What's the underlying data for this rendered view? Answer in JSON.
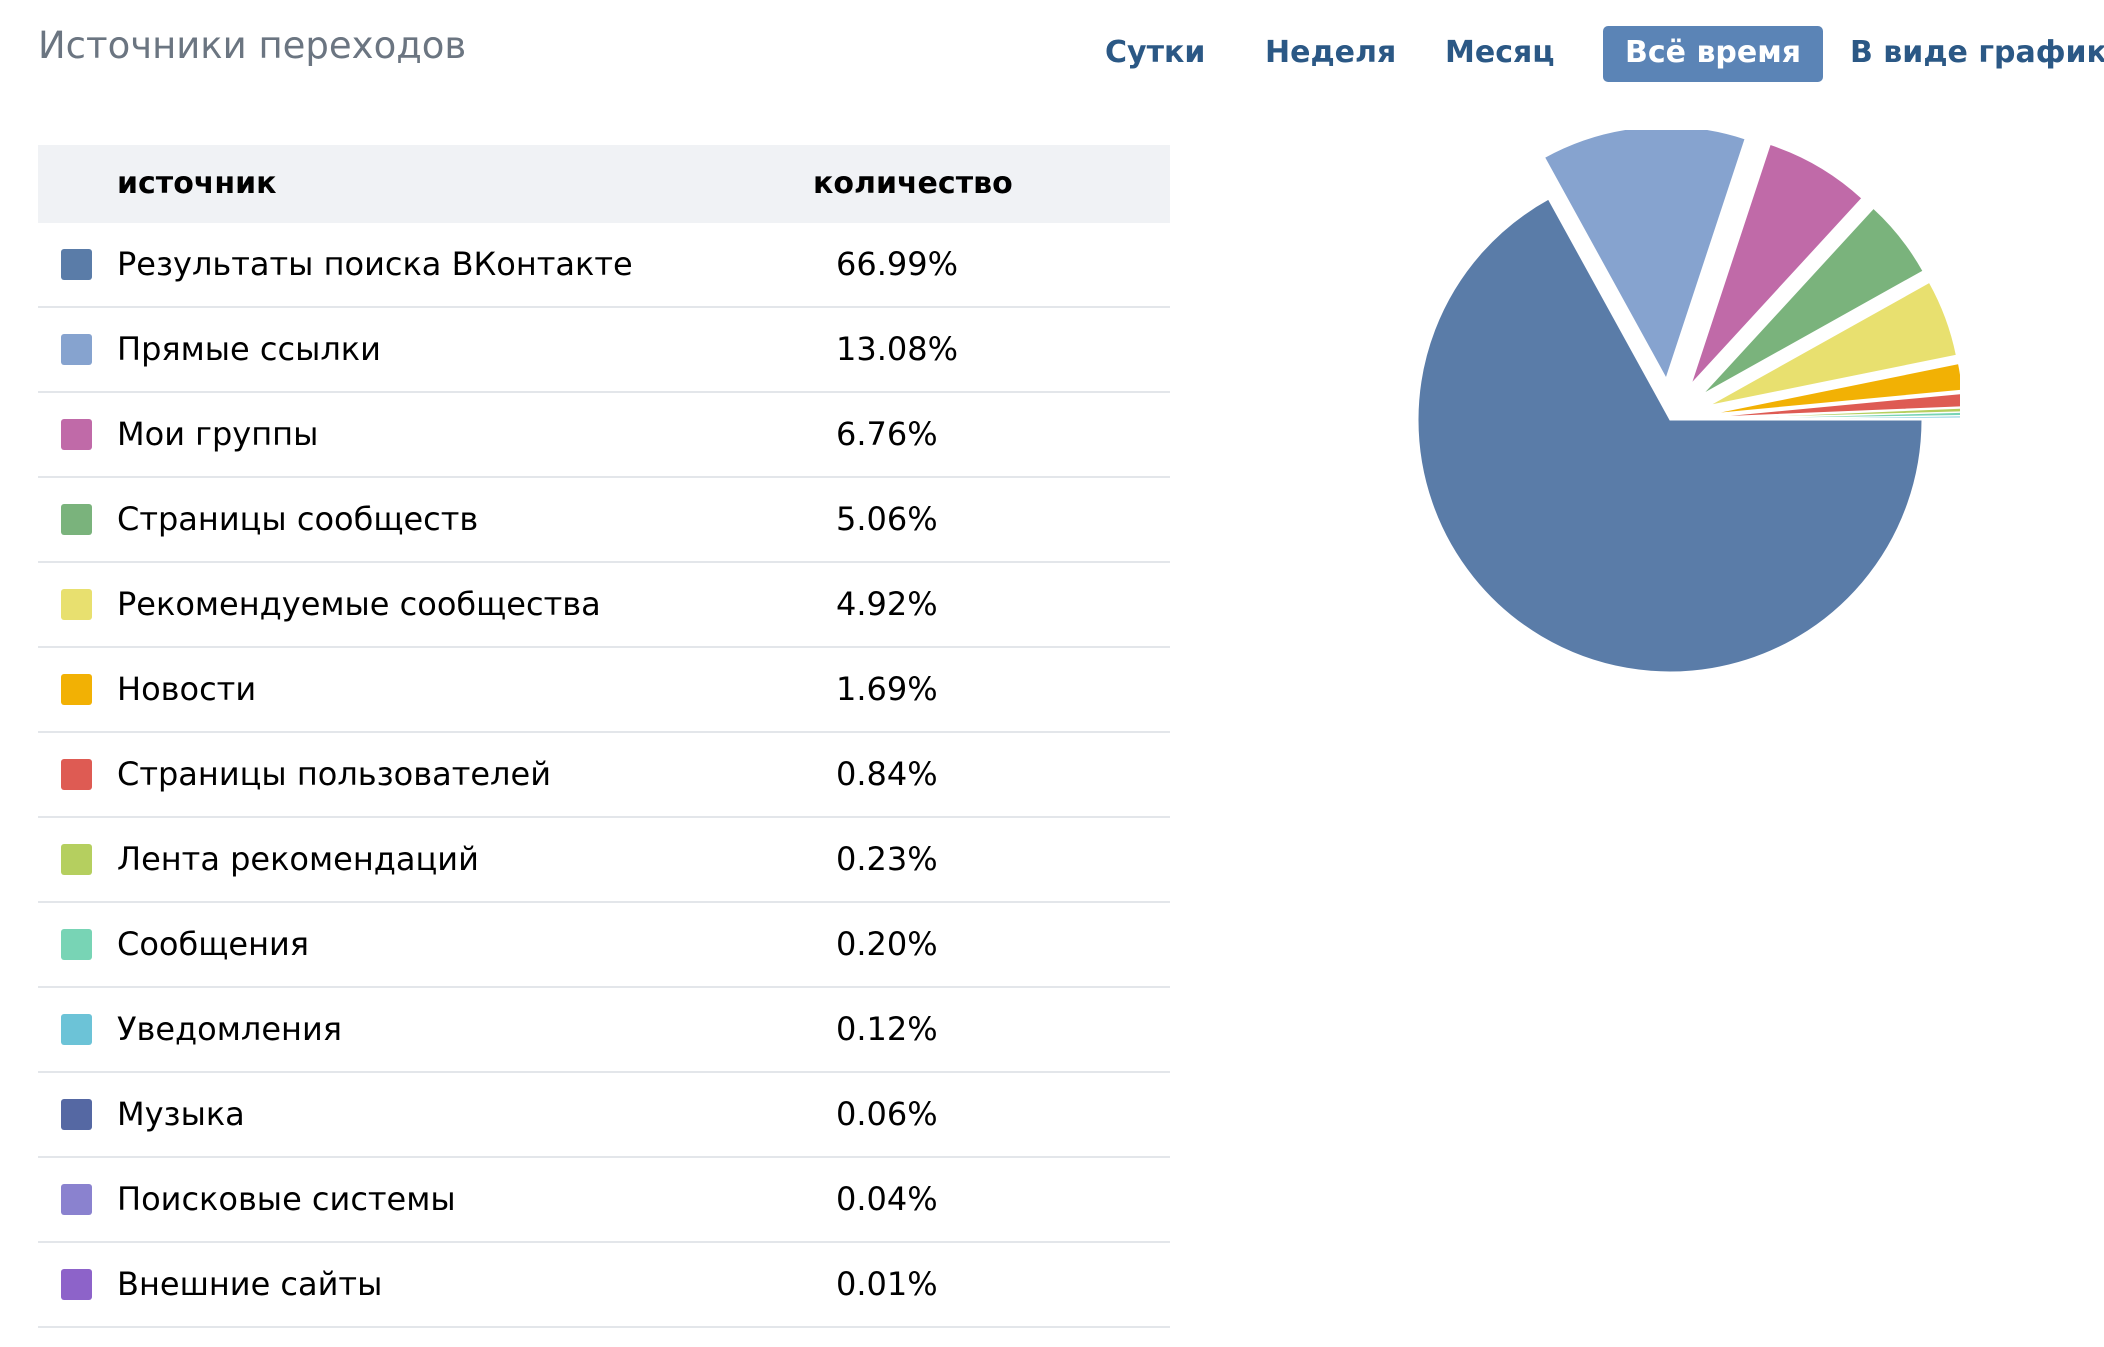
{
  "header": {
    "title": "Источники переходов"
  },
  "tabs": [
    {
      "label": "Сутки",
      "active": false
    },
    {
      "label": "Неделя",
      "active": false
    },
    {
      "label": "Месяц",
      "active": false
    },
    {
      "label": "Всё время",
      "active": true
    },
    {
      "label": "В виде графиков",
      "active": false
    }
  ],
  "table": {
    "col_source": "источник",
    "col_count": "количество"
  },
  "chart_data": {
    "type": "pie",
    "categories": [
      "Результаты поиска ВКонтакте",
      "Прямые ссылки",
      "Мои группы",
      "Страницы сообществ",
      "Рекомендуемые сообщества",
      "Новости",
      "Страницы пользователей",
      "Лента рекомендаций",
      "Сообщения",
      "Уведомления",
      "Музыка",
      "Поисковые системы",
      "Внешние сайты"
    ],
    "values": [
      66.99,
      13.08,
      6.76,
      5.06,
      4.92,
      1.69,
      0.84,
      0.23,
      0.2,
      0.12,
      0.06,
      0.04,
      0.01
    ],
    "value_labels": [
      "66.99%",
      "13.08%",
      "6.76%",
      "5.06%",
      "4.92%",
      "1.69%",
      "0.84%",
      "0.23%",
      "0.20%",
      "0.12%",
      "0.06%",
      "0.04%",
      "0.01%"
    ],
    "colors": [
      "#5a7ca8",
      "#86a3cf",
      "#c06aa8",
      "#7ab37c",
      "#e8e06f",
      "#f2b104",
      "#de5b53",
      "#b5cf5f",
      "#78d4b5",
      "#6cc3d7",
      "#5568a3",
      "#8a82cf",
      "#8d63c9"
    ],
    "legend": "table-left",
    "exploded": true
  }
}
